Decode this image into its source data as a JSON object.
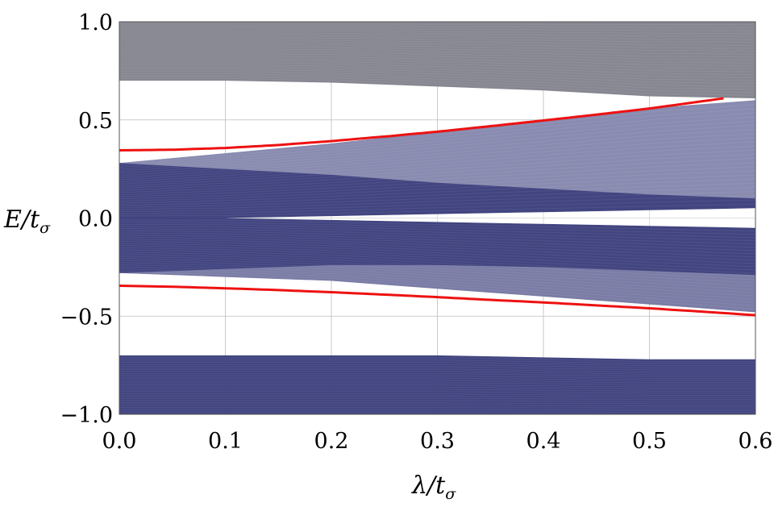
{
  "chart_data": {
    "type": "area",
    "xlabel": "λ/tσ",
    "ylabel": "E/tσ",
    "xlim": [
      0.0,
      0.6
    ],
    "ylim": [
      -1.0,
      1.0
    ],
    "grid": true,
    "x_ticks": [
      "0.0",
      "0.1",
      "0.2",
      "0.3",
      "0.4",
      "0.5",
      "0.6"
    ],
    "y_ticks": [
      "1.0",
      "0.5",
      "0.0",
      "−0.5",
      "−1.0"
    ],
    "colors": {
      "upper_band": "#83838e",
      "inner_bands": "#3c3f7c",
      "edge_states": "#ee1111",
      "grid": "#bdbdbd",
      "frame": "#555555"
    },
    "bands": [
      {
        "color_key": "upper_band",
        "x": [
          0.0,
          0.1,
          0.2,
          0.3,
          0.4,
          0.5,
          0.6
        ],
        "lower": [
          0.7,
          0.7,
          0.69,
          0.67,
          0.65,
          0.62,
          0.61
        ],
        "upper": [
          1.0,
          1.0,
          1.0,
          1.0,
          1.0,
          1.0,
          1.0
        ]
      },
      {
        "color_key": "inner_bands",
        "x": [
          0.0,
          0.1,
          0.2,
          0.3,
          0.4,
          0.5,
          0.6
        ],
        "lower": [
          0.0,
          0.0,
          0.01,
          0.02,
          0.03,
          0.04,
          0.05
        ],
        "upper": [
          0.28,
          0.33,
          0.38,
          0.44,
          0.5,
          0.56,
          0.6
        ]
      },
      {
        "color_key": "inner_bands",
        "x": [
          0.0,
          0.1,
          0.2,
          0.3,
          0.4,
          0.5,
          0.6
        ],
        "lower": [
          -0.28,
          -0.3,
          -0.32,
          -0.36,
          -0.4,
          -0.44,
          -0.48
        ],
        "upper": [
          0.0,
          0.0,
          -0.01,
          -0.02,
          -0.03,
          -0.04,
          -0.05
        ]
      },
      {
        "color_key": "inner_bands",
        "x": [
          0.0,
          0.1,
          0.2,
          0.3,
          0.4,
          0.5,
          0.6
        ],
        "lower": [
          -1.0,
          -1.0,
          -1.0,
          -1.0,
          -1.0,
          -1.0,
          -1.0
        ],
        "upper": [
          -0.7,
          -0.7,
          -0.7,
          -0.7,
          -0.71,
          -0.72,
          -0.72
        ]
      }
    ],
    "inner_lines": [
      {
        "x": [
          0.0,
          0.1,
          0.2,
          0.3,
          0.4,
          0.5,
          0.6
        ],
        "y": [
          0.28,
          0.25,
          0.22,
          0.18,
          0.15,
          0.12,
          0.1
        ]
      },
      {
        "x": [
          0.0,
          0.1,
          0.2,
          0.3,
          0.4,
          0.5,
          0.6
        ],
        "y": [
          -0.28,
          -0.26,
          -0.24,
          -0.24,
          -0.25,
          -0.27,
          -0.29
        ]
      }
    ],
    "series": [
      {
        "x": [
          0.0,
          0.05,
          0.1,
          0.15,
          0.2,
          0.25,
          0.3,
          0.35,
          0.4,
          0.45,
          0.5,
          0.55,
          0.57
        ],
        "y": [
          0.345,
          0.348,
          0.357,
          0.372,
          0.392,
          0.415,
          0.44,
          0.468,
          0.497,
          0.527,
          0.558,
          0.595,
          0.61
        ]
      },
      {
        "x": [
          0.0,
          0.05,
          0.1,
          0.15,
          0.2,
          0.25,
          0.3,
          0.35,
          0.4,
          0.45,
          0.5,
          0.55,
          0.6
        ],
        "y": [
          -0.345,
          -0.35,
          -0.358,
          -0.367,
          -0.378,
          -0.39,
          -0.403,
          -0.417,
          -0.43,
          -0.445,
          -0.46,
          -0.477,
          -0.495
        ]
      }
    ]
  }
}
